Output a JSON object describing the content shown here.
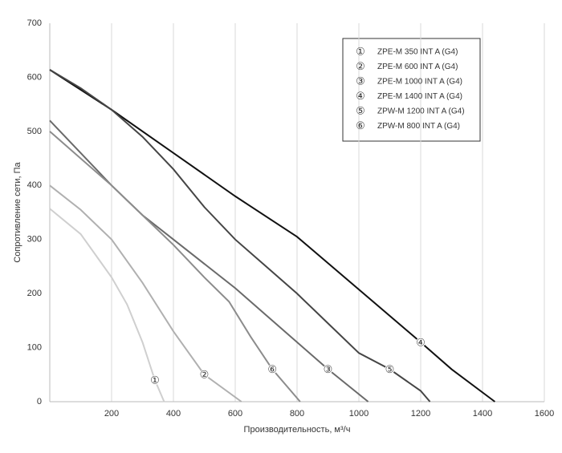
{
  "chart_data": {
    "type": "line",
    "xlabel": "Производительность, м³/ч",
    "ylabel": "Сопротивление сети, Па",
    "xlim": [
      0,
      1600
    ],
    "xticks": [
      200,
      400,
      600,
      800,
      1000,
      1200,
      1400,
      1600
    ],
    "ylim": [
      0,
      700
    ],
    "yticks": [
      0,
      100,
      200,
      300,
      400,
      500,
      600,
      700
    ],
    "grid": "x",
    "legend": "upper right",
    "series": [
      {
        "name": "ZPE-M 350 INT A (G4)",
        "marker": "①",
        "color": "#cfcfcf",
        "x": [
          0,
          100,
          200,
          250,
          300,
          340,
          370
        ],
        "values": [
          357,
          310,
          230,
          180,
          110,
          40,
          0
        ]
      },
      {
        "name": "ZPE-M 600 INT A (G4)",
        "marker": "②",
        "color": "#b0b0b0",
        "x": [
          0,
          100,
          200,
          300,
          400,
          500,
          620
        ],
        "values": [
          400,
          355,
          300,
          220,
          130,
          50,
          0
        ]
      },
      {
        "name": "ZPE-M 1000 INT A (G4)",
        "marker": "③",
        "color": "#6a6a6a",
        "x": [
          0,
          100,
          200,
          300,
          400,
          500,
          600,
          700,
          900,
          1030
        ],
        "values": [
          520,
          460,
          400,
          345,
          300,
          255,
          210,
          160,
          60,
          0
        ]
      },
      {
        "name": "ZPE-M 1400 INT A (G4)",
        "marker": "④",
        "color": "#111111",
        "x": [
          0,
          200,
          400,
          600,
          800,
          1200,
          1300,
          1440
        ],
        "values": [
          614,
          540,
          460,
          380,
          305,
          110,
          60,
          0
        ]
      },
      {
        "name": "ZPW-M 1200 INT A (G4)",
        "marker": "⑤",
        "color": "#454545",
        "x": [
          0,
          100,
          200,
          300,
          400,
          500,
          600,
          700,
          800,
          900,
          1000,
          1100,
          1200,
          1230
        ],
        "values": [
          614,
          580,
          540,
          490,
          430,
          360,
          300,
          250,
          200,
          145,
          90,
          60,
          20,
          0
        ]
      },
      {
        "name": "ZPW-M 800 INT A (G4)",
        "marker": "⑥",
        "color": "#8c8c8c",
        "x": [
          0,
          100,
          200,
          300,
          400,
          500,
          580,
          650,
          720,
          810
        ],
        "values": [
          500,
          450,
          400,
          345,
          290,
          230,
          185,
          120,
          60,
          0
        ]
      }
    ]
  }
}
